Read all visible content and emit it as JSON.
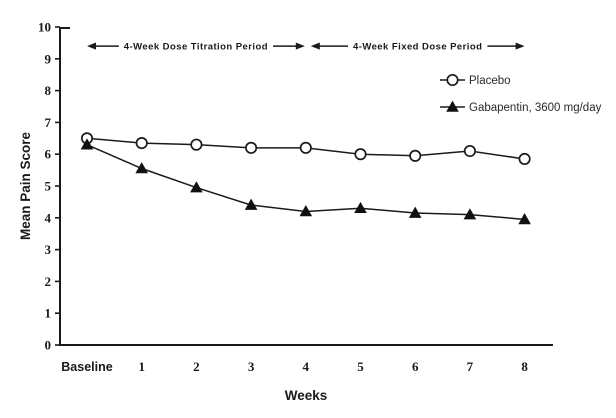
{
  "chart_data": {
    "type": "line",
    "title": "",
    "xlabel": "Weeks",
    "ylabel": "Mean Pain Score",
    "categories": [
      "Baseline",
      "1",
      "2",
      "3",
      "4",
      "5",
      "6",
      "7",
      "8"
    ],
    "ylim": [
      0,
      10
    ],
    "ytick_step": 1,
    "yticks": [
      0,
      1,
      2,
      3,
      4,
      5,
      6,
      7,
      8,
      9,
      10
    ],
    "grid": false,
    "legend_position": "upper-right-inside",
    "series": [
      {
        "name": "Placebo",
        "marker": "circle",
        "marker_fill": "#ffffff",
        "values": [
          6.5,
          6.35,
          6.3,
          6.2,
          6.2,
          6.0,
          5.95,
          6.1,
          5.85
        ]
      },
      {
        "name": "Gabapentin, 3600 mg/day",
        "marker": "triangle",
        "marker_fill": "#111111",
        "values": [
          6.3,
          5.55,
          4.95,
          4.4,
          4.2,
          4.3,
          4.15,
          4.1,
          3.95
        ]
      }
    ],
    "annotations": [
      {
        "label": "4-Week Dose Titration Period",
        "x_start": 0,
        "x_end": 4,
        "y_value": 9.4
      },
      {
        "label": "4-Week Fixed Dose Period",
        "x_start": 4,
        "x_end": 8,
        "y_value": 9.4
      }
    ]
  },
  "colors": {
    "stroke": "#1a1a1a",
    "text": "#1a1a1a",
    "background": "#ffffff"
  }
}
